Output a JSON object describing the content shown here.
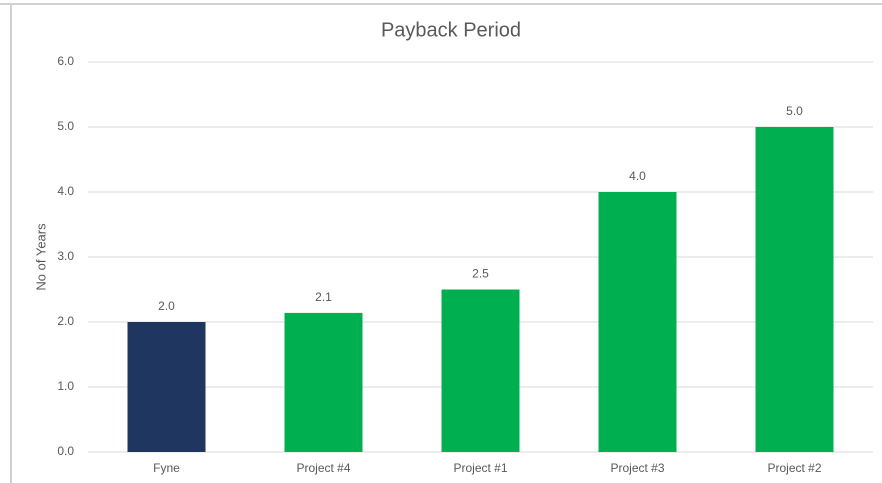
{
  "chart_data": {
    "type": "bar",
    "title": "Payback Period",
    "y_label": "No of Years",
    "categories": [
      "Fyne",
      "Project #4",
      "Project #1",
      "Project #3",
      "Project #2"
    ],
    "values": [
      2,
      2.14,
      2.5,
      4,
      5
    ],
    "value_labels": [
      "2.0",
      "2.1",
      "2.5",
      "4.0",
      "5.0"
    ],
    "colors": [
      "#1f3660",
      "#00b050",
      "#00b050",
      "#00b050",
      "#00b050"
    ],
    "ylim": [
      0,
      6
    ],
    "yticks": [
      {
        "value": 0,
        "label": "0.0"
      },
      {
        "value": 1,
        "label": "1.0"
      },
      {
        "value": 2,
        "label": "2.0"
      },
      {
        "value": 3,
        "label": "3.0"
      },
      {
        "value": 4,
        "label": "4.0"
      },
      {
        "value": 5,
        "label": "5.0"
      },
      {
        "value": 6,
        "label": "6.0"
      }
    ],
    "grid": true
  }
}
